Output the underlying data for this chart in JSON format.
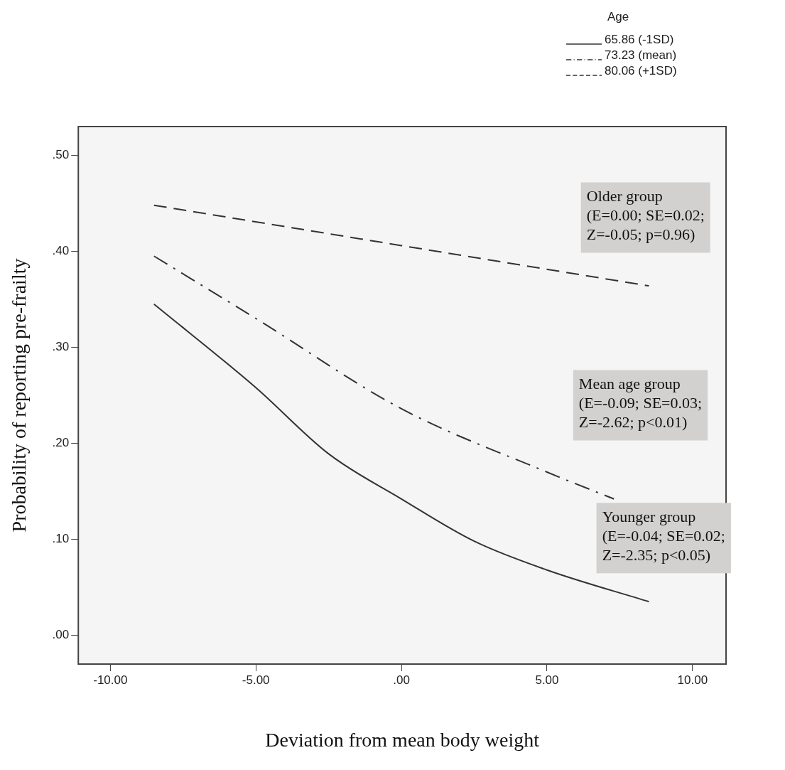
{
  "chart_data": {
    "type": "line",
    "xlabel": "Deviation from mean body weight",
    "ylabel": "Probability of reporting pre-frailty",
    "legend_title": "Age",
    "legend": "top right",
    "grid": false,
    "marker": "none",
    "xlim": [
      -11.1,
      11.15
    ],
    "ylim": [
      -0.03,
      0.53
    ],
    "xticks": [
      {
        "value": -10,
        "label": "-10.00"
      },
      {
        "value": -5,
        "label": "-5.00"
      },
      {
        "value": 0,
        "label": ".00"
      },
      {
        "value": 5,
        "label": "5.00"
      },
      {
        "value": 10,
        "label": "10.00"
      }
    ],
    "yticks": [
      {
        "value": 0,
        "label": ".00"
      },
      {
        "value": 0.1,
        "label": ".10"
      },
      {
        "value": 0.2,
        "label": ".20"
      },
      {
        "value": 0.3,
        "label": ".30"
      },
      {
        "value": 0.4,
        "label": ".40"
      },
      {
        "value": 0.5,
        "label": ".50"
      }
    ],
    "series": [
      {
        "name": "65.86 (-1SD)",
        "color": "#333333",
        "line_style": "solid",
        "x": [
          -8.5,
          -5,
          -2.5,
          0,
          2.5,
          5,
          8.5
        ],
        "values": [
          0.345,
          0.258,
          0.189,
          0.142,
          0.098,
          0.068,
          0.035
        ]
      },
      {
        "name": "73.23 (mean)",
        "color": "#333333",
        "line_style": "dashdot",
        "x": [
          -8.5,
          -5,
          0,
          5,
          7.3
        ],
        "values": [
          0.395,
          0.33,
          0.236,
          0.17,
          0.142
        ]
      },
      {
        "name": "80.06 (+1SD)",
        "color": "#333333",
        "line_style": "dashed",
        "x": [
          -8.5,
          0,
          8.5
        ],
        "values": [
          0.448,
          0.406,
          0.364
        ]
      }
    ],
    "annotations": [
      "Older group\n(E=0.00; SE=0.02;\nZ=-0.05; p=0.96)",
      "Mean age group\n(E=-0.09; SE=0.03;\nZ=-2.62; p<0.01)",
      "Younger group\n(E=-0.04; SE=0.02;\nZ=-2.35; p<0.05)"
    ]
  }
}
